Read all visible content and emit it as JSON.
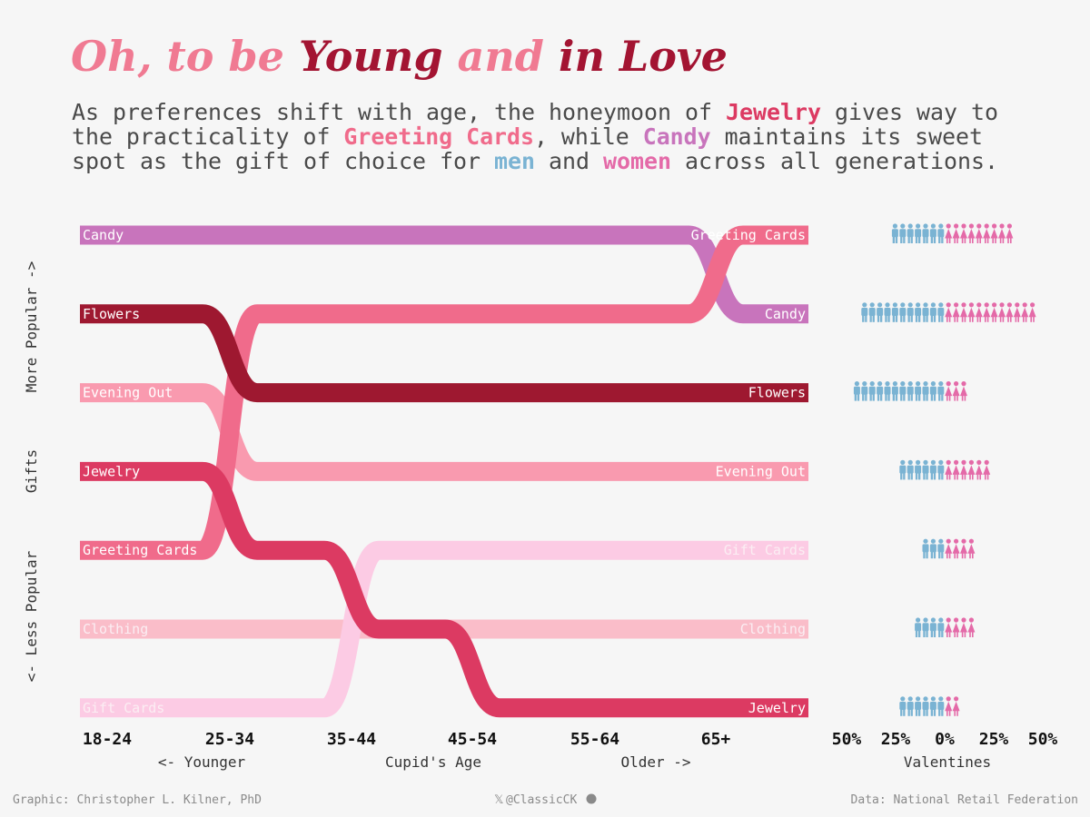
{
  "title": {
    "p1": "Oh, ",
    "p2": "to be ",
    "p3": "Young ",
    "p4": "and ",
    "p5": "in Love"
  },
  "subtitle": {
    "l1a": "As preferences shift with age, the honeymoon of ",
    "l1b": "Jewelry",
    "l1c": " gives way to",
    "l2a": "the practicality of ",
    "l2b": "Greeting Cards",
    "l2c": ", while ",
    "l2d": "Candy",
    "l2e": " maintains its sweet",
    "l3a": "spot as the gift of choice for ",
    "l3b": "men",
    "l3c": " and ",
    "l3d": "women",
    "l3e": " across all generations."
  },
  "y_labels": {
    "more": "More Popular ->",
    "gifts": "Gifts",
    "less": "<- Less Popular"
  },
  "x_labels": {
    "younger": "<- Younger",
    "axis": "Cupid's Age",
    "older": "Older ->",
    "valentines": "Valentines"
  },
  "footer": {
    "credit": "Graphic: Christopher L. Kilner, PhD",
    "handle": "@ClassicCK",
    "source": "Data: National Retail Federation"
  },
  "colors": {
    "men": "#7ab3d3",
    "women": "#e46aa8",
    "title_light": "#f07a92",
    "title_dark": "#a31432"
  },
  "chart_data": {
    "type": "bump",
    "title": "Oh, to be Young and in Love",
    "x": [
      "18-24",
      "25-34",
      "35-44",
      "45-54",
      "55-64",
      "65+"
    ],
    "xlabel": "Cupid's Age",
    "ylabel": "Gifts (More Popular -> Less Popular)",
    "series": [
      {
        "name": "Candy",
        "ranks": [
          1,
          1,
          1,
          1,
          1,
          2
        ],
        "color": "#c874bc"
      },
      {
        "name": "Flowers",
        "ranks": [
          2,
          3,
          3,
          3,
          3,
          3
        ],
        "color": "#9e1830"
      },
      {
        "name": "Evening Out",
        "ranks": [
          3,
          4,
          4,
          4,
          4,
          4
        ],
        "color": "#f99aaf"
      },
      {
        "name": "Jewelry",
        "ranks": [
          4,
          5,
          6,
          7,
          7,
          7
        ],
        "color": "#dc3a62"
      },
      {
        "name": "Greeting Cards",
        "ranks": [
          5,
          2,
          2,
          2,
          2,
          1
        ],
        "color": "#f06b8b"
      },
      {
        "name": "Clothing",
        "ranks": [
          6,
          6,
          6,
          6,
          6,
          6
        ],
        "color": "#fabdc9"
      },
      {
        "name": "Gift Cards",
        "ranks": [
          7,
          7,
          5,
          5,
          5,
          5
        ],
        "color": "#fccbe4"
      }
    ],
    "valentines": {
      "xlabel": "Valentines",
      "ticks": [
        "50%",
        "25%",
        "0%",
        "25%",
        "50%"
      ],
      "xlim": [
        -50,
        50
      ],
      "rows": [
        {
          "gift": "Greeting Cards",
          "men": 28,
          "women": 34
        },
        {
          "gift": "Candy",
          "men": 41,
          "women": 47
        },
        {
          "gift": "Flowers",
          "men": 46,
          "women": 13
        },
        {
          "gift": "Evening Out",
          "men": 24,
          "women": 22
        },
        {
          "gift": "Gift Cards",
          "men": 11,
          "women": 17
        },
        {
          "gift": "Clothing",
          "men": 15,
          "women": 17
        },
        {
          "gift": "Jewelry",
          "men": 24,
          "women": 8
        }
      ]
    }
  }
}
